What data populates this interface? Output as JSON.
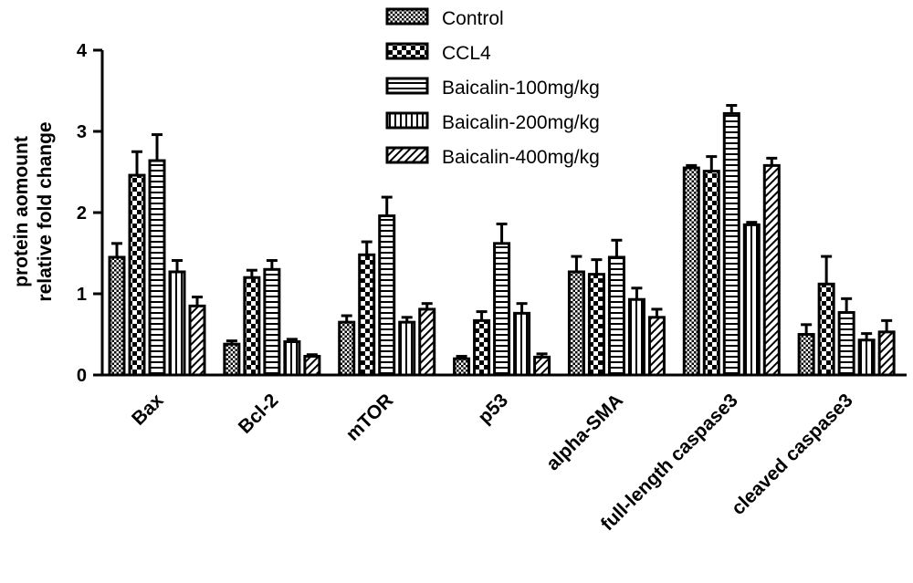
{
  "chart_data": {
    "type": "bar",
    "title": "",
    "xlabel": "",
    "ylabel": [
      "protein aomount",
      "relative fold change"
    ],
    "ylim": [
      0,
      4
    ],
    "yticks": [
      0,
      1,
      2,
      3,
      4
    ],
    "grid": false,
    "legend_position": "top",
    "categories": [
      "Bax",
      "Bcl-2",
      "mTOR",
      "p53",
      "alpha-SMA",
      "full-length caspase3",
      "cleaved caspase3"
    ],
    "series": [
      {
        "name": "Control",
        "pattern": "checker-fine",
        "values": [
          1.45,
          0.38,
          0.65,
          0.2,
          1.27,
          2.55,
          0.5
        ],
        "errors": [
          0.17,
          0.04,
          0.08,
          0.03,
          0.19,
          0.03,
          0.12
        ]
      },
      {
        "name": "CCL4",
        "pattern": "checker-bold",
        "values": [
          2.46,
          1.2,
          1.48,
          0.67,
          1.24,
          2.51,
          1.12
        ],
        "errors": [
          0.29,
          0.09,
          0.16,
          0.11,
          0.18,
          0.18,
          0.34
        ]
      },
      {
        "name": "Baicalin-100mg/kg",
        "pattern": "horizontal",
        "values": [
          2.64,
          1.3,
          1.96,
          1.62,
          1.45,
          3.22,
          0.77
        ],
        "errors": [
          0.32,
          0.11,
          0.23,
          0.24,
          0.21,
          0.1,
          0.17
        ]
      },
      {
        "name": "Baicalin-200mg/kg",
        "pattern": "vertical",
        "values": [
          1.27,
          0.41,
          0.65,
          0.76,
          0.93,
          1.85,
          0.43
        ],
        "errors": [
          0.14,
          0.03,
          0.06,
          0.12,
          0.14,
          0.03,
          0.08
        ]
      },
      {
        "name": "Baicalin-400mg/kg",
        "pattern": "diagonal",
        "values": [
          0.85,
          0.23,
          0.81,
          0.22,
          0.71,
          2.58,
          0.53
        ],
        "errors": [
          0.11,
          0.02,
          0.07,
          0.04,
          0.1,
          0.09,
          0.14
        ]
      }
    ]
  },
  "colors": {
    "ink": "#000000",
    "background": "#ffffff"
  }
}
